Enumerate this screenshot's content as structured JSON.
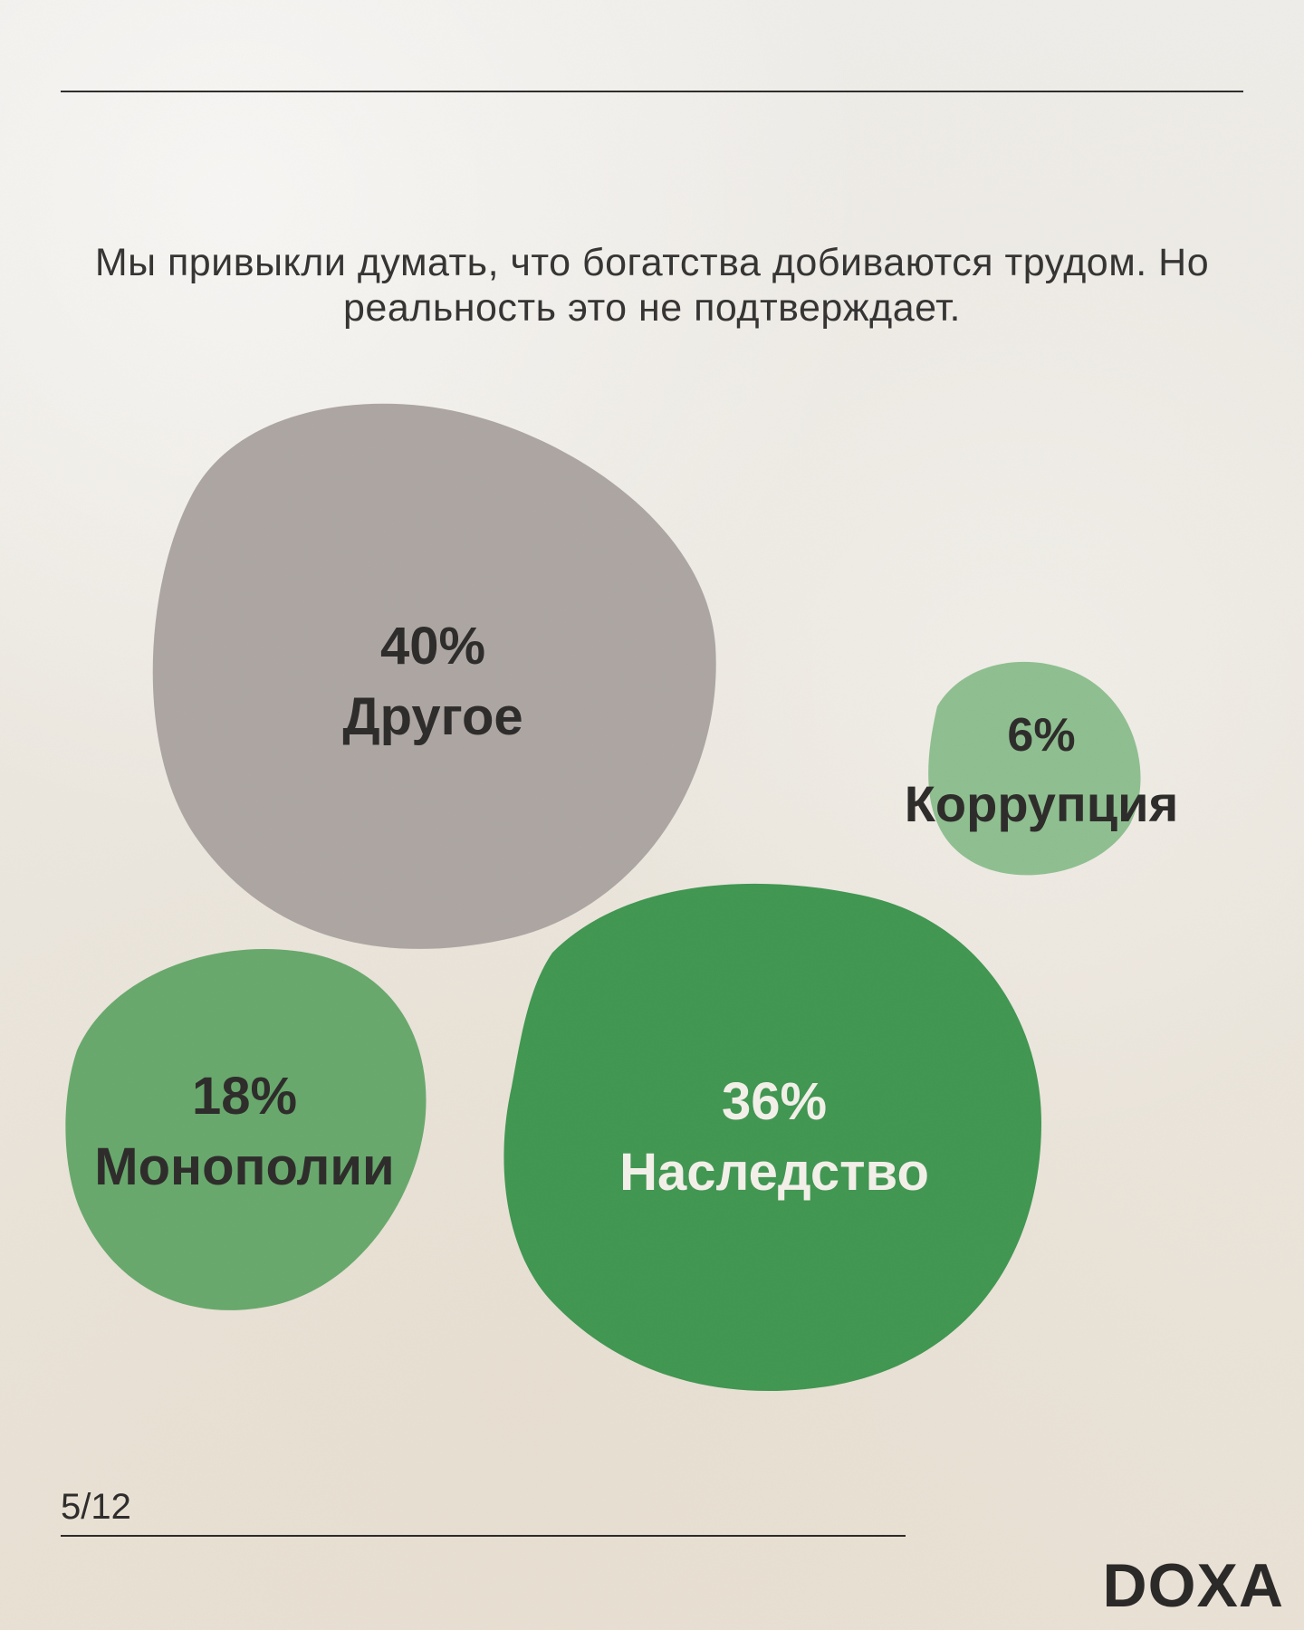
{
  "header": {
    "text": "Мы привыкли думать, что богатства добиваются трудом. Но реальность это не подтверждает."
  },
  "chart_data": {
    "type": "bubble",
    "items": [
      {
        "label": "Другое",
        "value": 40,
        "value_text": "40%",
        "color": "#aca5a2",
        "text_color": "#333130"
      },
      {
        "label": "Коррупция",
        "value": 6,
        "value_text": "6%",
        "color": "#8ebf8f",
        "text_color": "#333130"
      },
      {
        "label": "Монополии",
        "value": 18,
        "value_text": "18%",
        "color": "#67a86b",
        "text_color": "#333130"
      },
      {
        "label": "Наследство",
        "value": 36,
        "value_text": "36%",
        "color": "#3f9650",
        "text_color": "#f2efe8"
      }
    ]
  },
  "footer": {
    "page_number": "5/12",
    "brand": "DOXA"
  }
}
